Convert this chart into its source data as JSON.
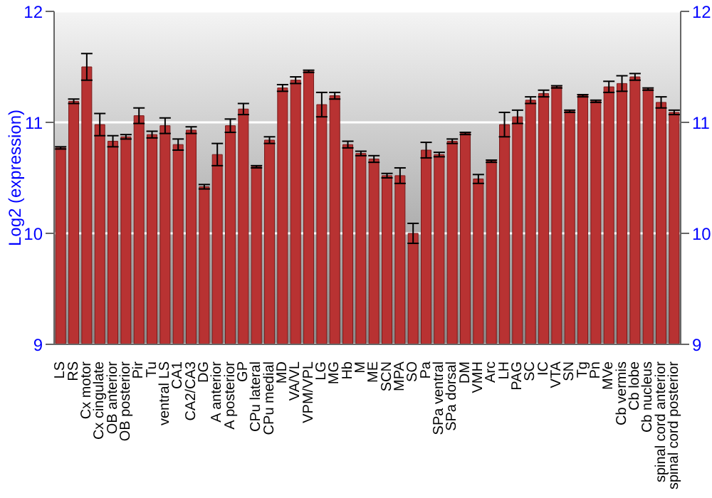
{
  "chart_data": {
    "type": "bar",
    "ylabel": "Log2 (expression)",
    "categories": [
      "LS",
      "RS",
      "Cx motor",
      "Cx cingulate",
      "OB anterior",
      "OB posterior",
      "Pir",
      "Tu",
      "ventral LS",
      "CA1",
      "CA2/CA3",
      "DG",
      "A anterior",
      "A posterior",
      "GP",
      "CPu lateral",
      "CPu medial",
      "MD",
      "VA/VL",
      "VPM/VPL",
      "LG",
      "MG",
      "Hb",
      "M",
      "ME",
      "SCN",
      "MPA",
      "SO",
      "Pa",
      "SPa ventral",
      "SPa dorsal",
      "DM",
      "VMH",
      "Arc",
      "LH",
      "PAG",
      "SC",
      "IC",
      "VTA",
      "SN",
      "Tg",
      "Pn",
      "MVe",
      "Cb vermis",
      "Cb lobe",
      "Cb nucleus",
      "spinal cord anterior",
      "spinal cord posterior"
    ],
    "series": [
      {
        "color": "#b83232",
        "values": [
          10.77,
          11.19,
          11.5,
          10.98,
          10.83,
          10.87,
          11.06,
          10.89,
          10.97,
          10.8,
          10.93,
          10.42,
          10.71,
          10.97,
          11.12,
          10.6,
          10.84,
          11.31,
          11.38,
          11.46,
          11.16,
          11.24,
          10.8,
          10.72,
          10.67,
          10.52,
          10.52,
          10.0,
          10.75,
          10.71,
          10.83,
          10.9,
          10.49,
          10.65,
          10.98,
          11.05,
          11.2,
          11.26,
          11.32,
          11.1,
          11.24,
          11.19,
          11.32,
          11.35,
          11.41,
          11.3,
          11.18,
          11.09
        ],
        "errors": [
          0.01,
          0.02,
          0.12,
          0.1,
          0.05,
          0.02,
          0.07,
          0.03,
          0.07,
          0.05,
          0.03,
          0.02,
          0.1,
          0.06,
          0.05,
          0.01,
          0.03,
          0.03,
          0.03,
          0.01,
          0.11,
          0.03,
          0.03,
          0.02,
          0.03,
          0.02,
          0.07,
          0.09,
          0.07,
          0.02,
          0.02,
          0.01,
          0.04,
          0.01,
          0.11,
          0.06,
          0.03,
          0.03,
          0.01,
          0.01,
          0.01,
          0.01,
          0.05,
          0.07,
          0.03,
          0.01,
          0.05,
          0.02
        ]
      }
    ],
    "ylim": [
      9,
      12
    ],
    "yticks": [
      9,
      10,
      11,
      12
    ],
    "y2lim": [
      9,
      12
    ],
    "y2ticks": [
      9,
      10,
      11,
      12
    ],
    "grid": "y"
  }
}
